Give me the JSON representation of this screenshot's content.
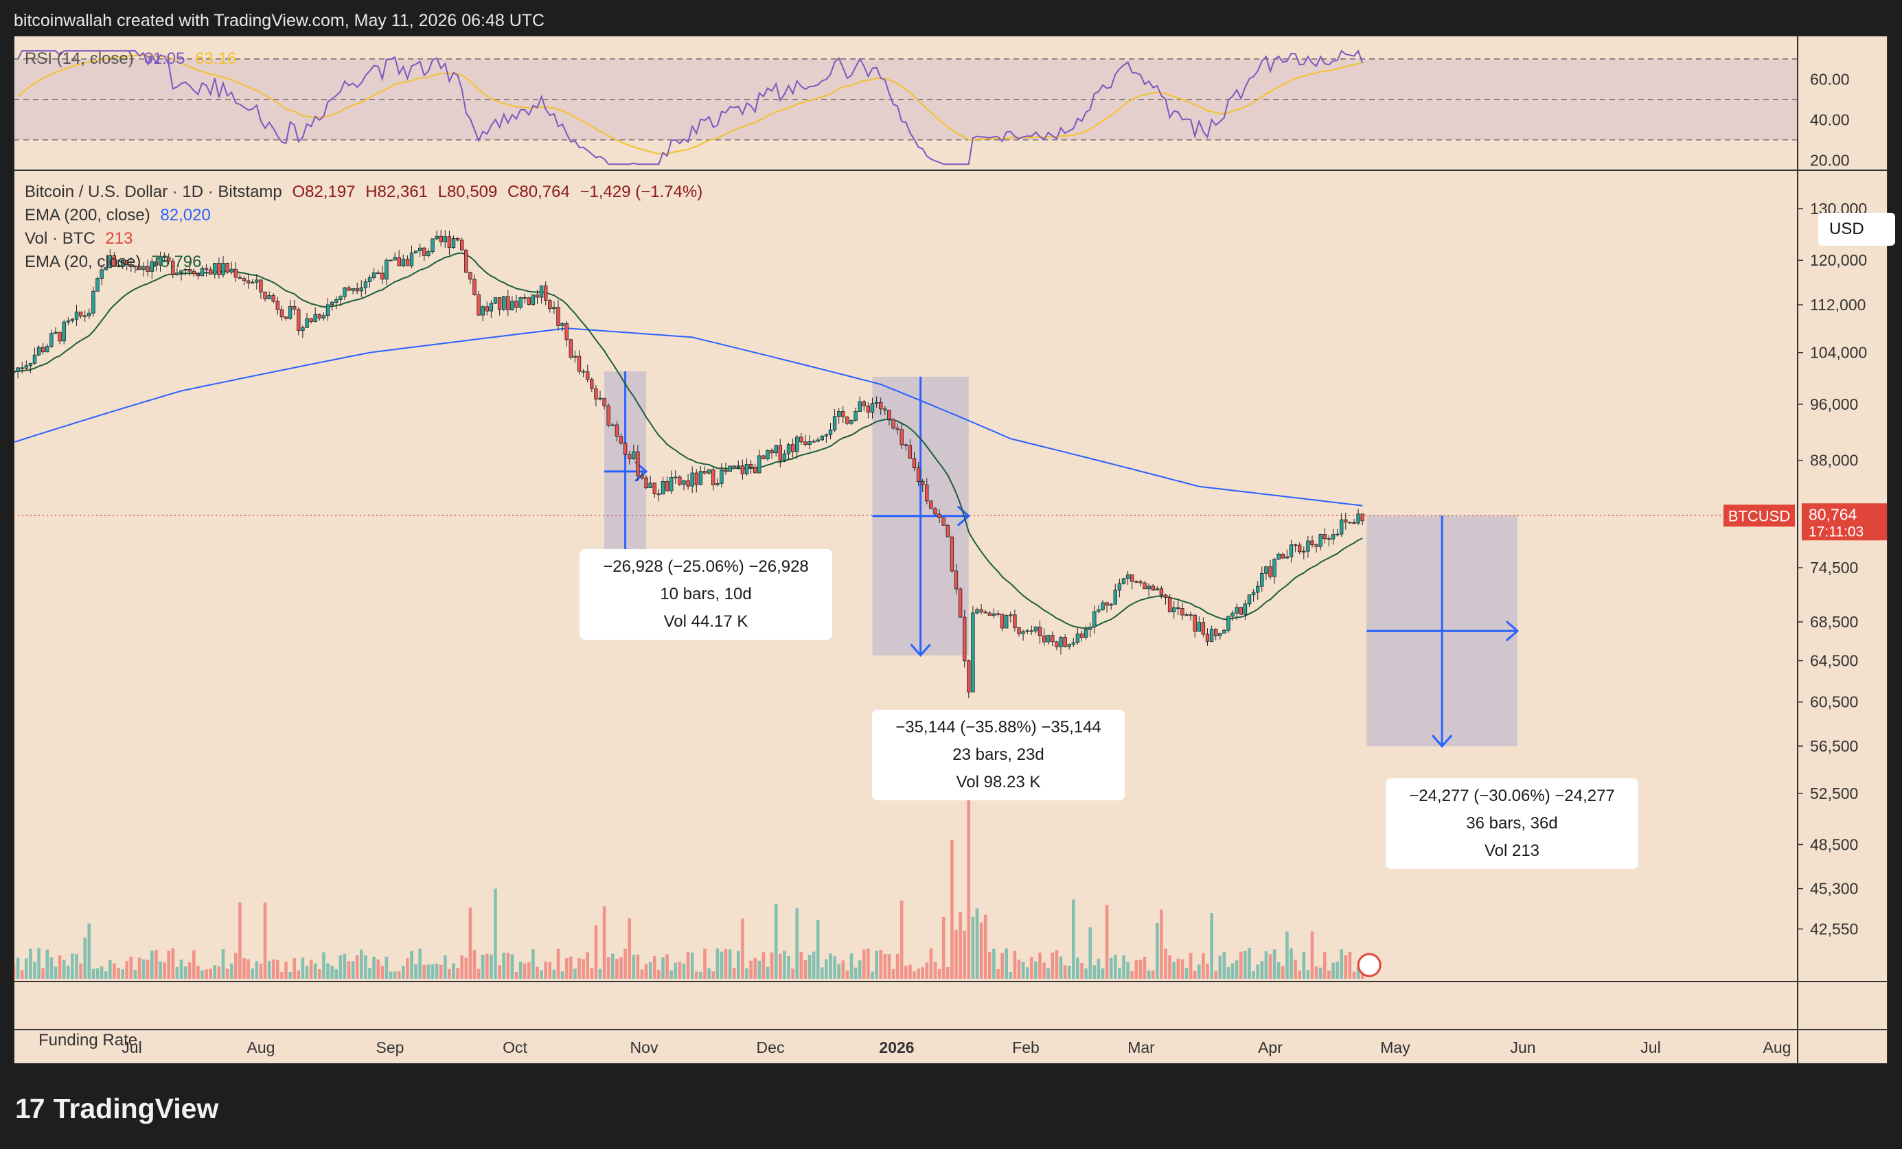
{
  "header": {
    "text": "bitcoinwallah created with TradingView.com, May 11, 2026 06:48 UTC"
  },
  "rsi_legend": {
    "label": "RSI (14, close)",
    "value": "61.05",
    "ma_value": "63.16"
  },
  "price_legend": {
    "symbol": "Bitcoin / U.S. Dollar · 1D · Bitstamp",
    "open": "O82,197",
    "high": "H82,361",
    "low": "L80,509",
    "close": "C80,764",
    "change": "−1,429 (−1.74%)",
    "ema200_label": "EMA (200, close)",
    "ema200_value": "82,020",
    "vol_label": "Vol · BTC",
    "vol_value": "213",
    "ema20_label": "EMA (20, close)",
    "ema20_value": "78,796"
  },
  "currency": "USD",
  "price_tag": {
    "symbol": "BTCUSD",
    "price": "80,764",
    "countdown": "17:11:03"
  },
  "funding_label": "Funding Rate",
  "measure_boxes": [
    {
      "line1": "−26,928 (−25.06%) −26,928",
      "line2": "10 bars, 10d",
      "line3": "Vol 44.17 K"
    },
    {
      "line1": "−35,144 (−35.88%) −35,144",
      "line2": "23 bars, 23d",
      "line3": "Vol 98.23 K"
    },
    {
      "line1": "−24,277 (−30.06%) −24,277",
      "line2": "36 bars, 36d",
      "line3": "Vol 213"
    }
  ],
  "footer": {
    "brand": "TradingView"
  },
  "colors": {
    "up": "#26a69a",
    "down": "#ef5350",
    "ema200": "#2962ff",
    "ema20": "#1b5e3b",
    "rsi": "#7e57c2",
    "rsi_ma": "#f2c230",
    "measure": "#2962ff",
    "tag": "#e0453a"
  },
  "chart_data": {
    "type": "candlestick",
    "title": "Bitcoin / U.S. Dollar · 1D · Bitstamp",
    "y_scale": "log",
    "ylim": [
      40000,
      140000
    ],
    "y_ticks": [
      "130,000",
      "120,000",
      "112,000",
      "104,000",
      "96,000",
      "88,000",
      "74,500",
      "68,500",
      "64,500",
      "60,500",
      "56,500",
      "52,500",
      "48,500",
      "45,300",
      "42,550"
    ],
    "x_ticks": [
      "Jul",
      "Aug",
      "Sep",
      "Oct",
      "Nov",
      "Dec",
      "2026",
      "Feb",
      "Mar",
      "Apr",
      "May",
      "Jun",
      "Jul",
      "Aug"
    ],
    "rsi_ticks": [
      "60.00",
      "40.00",
      "20.00"
    ],
    "rsi_levels": [
      70,
      50,
      30
    ],
    "last_price": 80764,
    "close_series": [
      {
        "date": "2025-06-22",
        "close": 101000
      },
      {
        "date": "2025-07-10",
        "close": 111000
      },
      {
        "date": "2025-07-14",
        "close": 119800
      },
      {
        "date": "2025-08-14",
        "close": 118000
      },
      {
        "date": "2025-08-30",
        "close": 108500
      },
      {
        "date": "2025-09-12",
        "close": 116000
      },
      {
        "date": "2025-10-06",
        "close": 124700
      },
      {
        "date": "2025-10-11",
        "close": 111000
      },
      {
        "date": "2025-10-27",
        "close": 114000
      },
      {
        "date": "2025-11-04",
        "close": 101000
      },
      {
        "date": "2025-11-21",
        "close": 84000
      },
      {
        "date": "2025-12-15",
        "close": 87000
      },
      {
        "date": "2026-01-14",
        "close": 96500
      },
      {
        "date": "2026-01-31",
        "close": 78000
      },
      {
        "date": "2026-02-05",
        "close": 62000
      },
      {
        "date": "2026-02-06",
        "close": 70000
      },
      {
        "date": "2026-03-01",
        "close": 66000
      },
      {
        "date": "2026-03-15",
        "close": 73500
      },
      {
        "date": "2026-04-05",
        "close": 66500
      },
      {
        "date": "2026-04-20",
        "close": 75500
      },
      {
        "date": "2026-05-10",
        "close": 80764
      }
    ],
    "ema200_series": [
      {
        "date": "2025-06-22",
        "value": 90500
      },
      {
        "date": "2025-08-01",
        "value": 98000
      },
      {
        "date": "2025-09-15",
        "value": 104000
      },
      {
        "date": "2025-11-01",
        "value": 108000
      },
      {
        "date": "2025-12-01",
        "value": 106500
      },
      {
        "date": "2026-01-15",
        "value": 99000
      },
      {
        "date": "2026-02-15",
        "value": 91000
      },
      {
        "date": "2026-04-01",
        "value": 84500
      },
      {
        "date": "2026-05-10",
        "value": 82020
      }
    ],
    "measurements": [
      {
        "start": "2025-11-10",
        "end": "2025-11-20",
        "change": -26928,
        "pct": -25.06,
        "bars": 10,
        "vol": "44.17 K"
      },
      {
        "start": "2026-01-13",
        "end": "2026-02-05",
        "change": -35144,
        "pct": -35.88,
        "bars": 23,
        "vol": "98.23 K"
      },
      {
        "start": "2026-05-11",
        "end": "2026-06-16",
        "change": -24277,
        "pct": -30.06,
        "bars": 36,
        "vol": "213"
      }
    ]
  }
}
